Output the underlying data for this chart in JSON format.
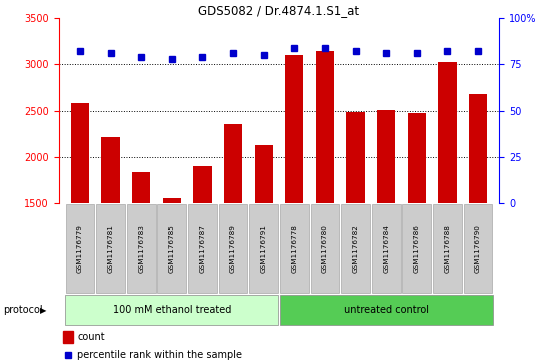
{
  "title": "GDS5082 / Dr.4874.1.S1_at",
  "samples": [
    "GSM1176779",
    "GSM1176781",
    "GSM1176783",
    "GSM1176785",
    "GSM1176787",
    "GSM1176789",
    "GSM1176791",
    "GSM1176778",
    "GSM1176780",
    "GSM1176782",
    "GSM1176784",
    "GSM1176786",
    "GSM1176788",
    "GSM1176790"
  ],
  "counts": [
    2580,
    2220,
    1840,
    1560,
    1900,
    2360,
    2130,
    3100,
    3150,
    2490,
    2510,
    2480,
    3030,
    2680
  ],
  "percentiles": [
    82,
    81,
    79,
    78,
    79,
    81,
    80,
    84,
    84,
    82,
    81,
    81,
    82,
    82
  ],
  "group1_label": "100 mM ethanol treated",
  "group2_label": "untreated control",
  "group1_count": 7,
  "group2_count": 7,
  "ylim_left": [
    1500,
    3500
  ],
  "ylim_right": [
    0,
    100
  ],
  "yticks_left": [
    1500,
    2000,
    2500,
    3000,
    3500
  ],
  "yticks_right": [
    0,
    25,
    50,
    75,
    100
  ],
  "bar_color": "#cc0000",
  "dot_color": "#0000cc",
  "group1_bg": "#ccffcc",
  "group2_bg": "#55cc55",
  "sample_bg": "#cccccc",
  "legend_count_color": "#cc0000",
  "legend_pct_color": "#0000cc",
  "bar_width": 0.6,
  "protocol_label": "protocol",
  "gridlines": [
    2000,
    2500,
    3000
  ]
}
